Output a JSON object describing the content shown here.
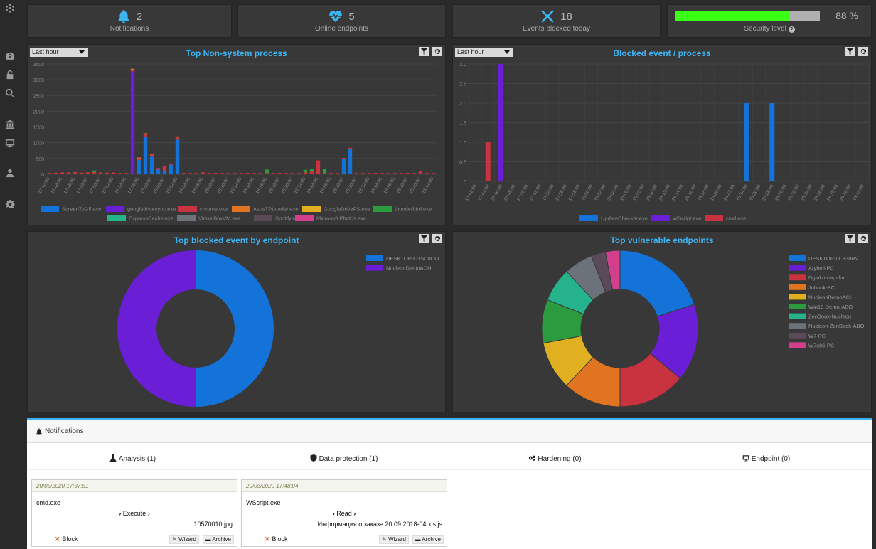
{
  "kpis": {
    "notifications": {
      "value": "2",
      "label": "Notifications"
    },
    "online": {
      "value": "5",
      "label": "Online endpoints"
    },
    "blocked": {
      "value": "18",
      "label": "Events blocked today"
    },
    "security": {
      "value": "88 %",
      "label": "Security level",
      "level_fraction": 0.88
    }
  },
  "colors": {
    "accent": "#3db4f2",
    "green": "#39ff14",
    "series": [
      "#1373d9",
      "#6a1ed6",
      "#c9323f",
      "#e07420",
      "#e0b020",
      "#2c9a3e",
      "#24b38a",
      "#6b727a",
      "#5a4a5a",
      "#d43f8d"
    ]
  },
  "panels": {
    "p1": {
      "title": "Top Non-system process",
      "range": "Last hour",
      "chart_data": {
        "type": "bar",
        "title": "Top Non-system process",
        "ylim": [
          0,
          3500
        ],
        "yticks": [
          0,
          500,
          1000,
          1500,
          2000,
          2500,
          3000,
          3500
        ],
        "x": [
          "17:42:00",
          "17:43:00",
          "17:44:00",
          "17:45:00",
          "17:46:00",
          "17:47:00",
          "17:48:00",
          "17:49:00",
          "17:50:00",
          "17:51:00",
          "17:52:00",
          "17:53:00",
          "17:54:00",
          "17:55:00",
          "17:56:00",
          "17:57:00",
          "17:58:00",
          "17:59:00",
          "18:00:00",
          "18:01:00",
          "18:02:00",
          "18:03:00",
          "18:04:00",
          "18:05:00",
          "18:06:00",
          "18:07:00",
          "18:08:00",
          "18:09:00",
          "18:10:00",
          "18:11:00",
          "18:12:00",
          "18:13:00",
          "18:14:00",
          "18:15:00",
          "18:16:00",
          "18:17:00",
          "18:18:00",
          "18:19:00",
          "18:20:00",
          "18:21:00",
          "18:22:00",
          "18:23:00",
          "18:24:00",
          "18:25:00",
          "18:26:00",
          "18:27:00",
          "18:28:00",
          "18:29:00",
          "18:30:00",
          "18:31:00",
          "18:32:00",
          "18:33:00",
          "18:34:00",
          "18:35:00",
          "18:36:00",
          "18:37:00",
          "18:38:00",
          "18:39:00",
          "18:40:00",
          "18:41:00",
          "18:42:00"
        ],
        "xtick_labels": [
          "17:42:00",
          "17:44:00",
          "17:46:00",
          "17:48:00",
          "17:50:00",
          "17:52:00",
          "17:54:00",
          "17:56:00",
          "17:58:00",
          "18:00:00",
          "18:02:00",
          "18:04:00",
          "18:06:00",
          "18:08:00",
          "18:10:00",
          "18:12:00",
          "18:14:00",
          "18:16:00",
          "18:18:00",
          "18:20:00",
          "18:22:00",
          "18:24:00",
          "18:26:00",
          "18:28:00",
          "18:30:00",
          "18:32:00",
          "18:34:00",
          "18:36:00",
          "18:38:00",
          "18:40:00",
          "18:42:00"
        ],
        "series": [
          {
            "name": "ScreenToGif.exe",
            "values": [
              0,
              0,
              0,
              0,
              0,
              0,
              0,
              0,
              0,
              0,
              0,
              0,
              0,
              0,
              450,
              1200,
              560,
              150,
              100,
              300,
              1100,
              0,
              0,
              0,
              0,
              0,
              0,
              0,
              0,
              0,
              0,
              0,
              0,
              0,
              0,
              0,
              0,
              0,
              0,
              0,
              0,
              0,
              0,
              0,
              0,
              0,
              480,
              800,
              0,
              0,
              0,
              0,
              0,
              0,
              0,
              0,
              0,
              0,
              0,
              0,
              0
            ]
          },
          {
            "name": "googledrivesync.exe",
            "values": [
              0,
              0,
              0,
              0,
              0,
              0,
              0,
              0,
              0,
              0,
              0,
              0,
              0,
              3260,
              0,
              0,
              0,
              0,
              0,
              0,
              0,
              0,
              0,
              0,
              0,
              0,
              0,
              0,
              0,
              0,
              0,
              0,
              0,
              0,
              0,
              0,
              0,
              0,
              0,
              0,
              0,
              0,
              0,
              0,
              0,
              0,
              0,
              0,
              0,
              0,
              0,
              0,
              0,
              0,
              0,
              0,
              0,
              0,
              0,
              0,
              0
            ]
          },
          {
            "name": "chrome.exe",
            "values": [
              40,
              50,
              60,
              60,
              70,
              50,
              60,
              70,
              60,
              50,
              60,
              40,
              40,
              50,
              50,
              60,
              60,
              50,
              150,
              40,
              70,
              40,
              40,
              40,
              60,
              40,
              40,
              40,
              40,
              40,
              40,
              40,
              40,
              40,
              40,
              40,
              40,
              40,
              40,
              40,
              60,
              100,
              440,
              40,
              40,
              40,
              40,
              40,
              40,
              40,
              40,
              40,
              40,
              40,
              40,
              40,
              40,
              40,
              100,
              40,
              40
            ]
          },
          {
            "name": "AsusTPLoader.exe",
            "values": [
              0,
              0,
              0,
              0,
              0,
              0,
              0,
              0,
              0,
              0,
              0,
              0,
              0,
              40,
              30,
              40,
              30,
              0,
              0,
              0,
              30,
              0,
              0,
              0,
              0,
              0,
              0,
              0,
              0,
              0,
              0,
              0,
              0,
              0,
              0,
              0,
              0,
              0,
              0,
              0,
              0,
              0,
              0,
              0,
              0,
              0,
              0,
              0,
              0,
              0,
              0,
              0,
              0,
              0,
              0,
              0,
              0,
              0,
              0,
              0,
              0
            ]
          },
          {
            "name": "GoogleDriveFS.exe",
            "values": [
              0,
              0,
              0,
              0,
              0,
              0,
              0,
              0,
              0,
              0,
              0,
              0,
              0,
              0,
              0,
              0,
              0,
              0,
              0,
              0,
              0,
              0,
              0,
              0,
              0,
              0,
              0,
              0,
              0,
              0,
              0,
              0,
              0,
              0,
              0,
              0,
              0,
              0,
              0,
              0,
              0,
              0,
              0,
              0,
              0,
              0,
              0,
              0,
              0,
              0,
              0,
              0,
              0,
              0,
              0,
              0,
              0,
              0,
              0,
              0,
              0
            ]
          },
          {
            "name": "thunderbird.exe",
            "values": [
              0,
              0,
              0,
              0,
              0,
              0,
              0,
              50,
              0,
              0,
              0,
              0,
              0,
              0,
              0,
              0,
              0,
              0,
              0,
              0,
              0,
              0,
              0,
              0,
              0,
              0,
              0,
              0,
              0,
              0,
              0,
              0,
              0,
              0,
              110,
              0,
              0,
              0,
              0,
              0,
              80,
              80,
              0,
              120,
              0,
              0,
              0,
              0,
              0,
              0,
              0,
              0,
              0,
              0,
              0,
              0,
              0,
              0,
              0,
              0,
              0
            ]
          },
          {
            "name": "ExpressCache.exe",
            "values": [
              0,
              0,
              0,
              0,
              0,
              0,
              0,
              0,
              0,
              0,
              0,
              0,
              0,
              0,
              0,
              0,
              0,
              0,
              0,
              0,
              0,
              0,
              0,
              0,
              0,
              0,
              0,
              0,
              0,
              0,
              0,
              0,
              0,
              0,
              0,
              0,
              0,
              0,
              0,
              0,
              0,
              0,
              0,
              0,
              0,
              0,
              0,
              0,
              0,
              0,
              0,
              0,
              0,
              0,
              0,
              0,
              0,
              0,
              0,
              0,
              0
            ]
          },
          {
            "name": "VirtualBoxVM.exe",
            "values": [
              0,
              0,
              0,
              0,
              0,
              0,
              0,
              0,
              0,
              0,
              0,
              0,
              0,
              0,
              0,
              0,
              0,
              0,
              0,
              0,
              0,
              0,
              0,
              0,
              0,
              0,
              0,
              0,
              0,
              0,
              0,
              0,
              0,
              0,
              0,
              0,
              0,
              0,
              0,
              0,
              0,
              0,
              0,
              0,
              0,
              0,
              0,
              0,
              0,
              0,
              0,
              0,
              0,
              0,
              0,
              0,
              0,
              0,
              0,
              0,
              0
            ]
          },
          {
            "name": "Spotify.exe",
            "values": [
              0,
              0,
              0,
              0,
              0,
              0,
              0,
              0,
              0,
              0,
              0,
              0,
              0,
              0,
              0,
              0,
              0,
              0,
              0,
              0,
              0,
              0,
              0,
              0,
              0,
              0,
              0,
              0,
              0,
              0,
              0,
              0,
              0,
              0,
              0,
              0,
              0,
              0,
              0,
              0,
              0,
              0,
              0,
              0,
              0,
              0,
              0,
              0,
              0,
              0,
              0,
              0,
              0,
              0,
              0,
              0,
              0,
              0,
              0,
              0,
              0
            ]
          },
          {
            "name": "Microsoft.Photos.exe",
            "values": [
              0,
              0,
              0,
              0,
              0,
              0,
              0,
              0,
              0,
              0,
              0,
              0,
              0,
              0,
              0,
              0,
              0,
              0,
              0,
              0,
              0,
              0,
              0,
              0,
              0,
              0,
              0,
              0,
              0,
              0,
              0,
              0,
              0,
              0,
              0,
              0,
              0,
              0,
              0,
              0,
              0,
              0,
              0,
              0,
              0,
              0,
              0,
              0,
              0,
              0,
              0,
              0,
              0,
              0,
              0,
              0,
              0,
              0,
              0,
              0,
              0
            ]
          }
        ]
      }
    },
    "p2": {
      "title": "Blocked event / process",
      "range": "Last hour",
      "chart_data": {
        "type": "bar",
        "title": "Blocked event / process",
        "ylim": [
          0,
          3.0
        ],
        "yticks": [
          "0",
          "0.5",
          "1.0",
          "1.5",
          "2.0",
          "2.5",
          "3.0"
        ],
        "x": [
          "17:42:00",
          "17:44:00",
          "17:46:00",
          "17:48:00",
          "17:50:00",
          "17:52:00",
          "17:54:00",
          "17:56:00",
          "17:58:00",
          "18:00:00",
          "18:02:00",
          "18:04:00",
          "18:06:00",
          "18:08:00",
          "18:10:00",
          "18:12:00",
          "18:14:00",
          "18:16:00",
          "18:18:00",
          "18:20:00",
          "18:22:00",
          "18:24:00",
          "18:26:00",
          "18:28:00",
          "18:30:00",
          "18:32:00",
          "18:34:00",
          "18:36:00",
          "18:38:00",
          "18:40:00",
          "18:42:00"
        ],
        "bars": [
          {
            "x": "17:44:00",
            "series": "cmd.exe",
            "value": 1
          },
          {
            "x": "17:46:00",
            "series": "WScript.exe",
            "value": 3
          },
          {
            "x": "18:24:00",
            "series": "UpdateChecker.exe",
            "value": 2
          },
          {
            "x": "18:28:00",
            "series": "UpdateChecker.exe",
            "value": 2
          }
        ],
        "series": [
          {
            "name": "UpdateChecker.exe",
            "color": "#1373d9"
          },
          {
            "name": "WScript.exe",
            "color": "#6a1ed6"
          },
          {
            "name": "cmd.exe",
            "color": "#c9323f"
          }
        ]
      }
    },
    "p3": {
      "title": "Top blocked event by endpoint",
      "chart_data": {
        "type": "pie",
        "title": "Top blocked event by endpoint",
        "labels": [
          "DESKTOP-O1SC8DO",
          "NucleonDemoACH"
        ],
        "values": [
          50,
          50
        ],
        "colors": [
          "#1373d9",
          "#6a1ed6"
        ]
      }
    },
    "p4": {
      "title": "Top vulnerable endpoints",
      "chart_data": {
        "type": "pie",
        "title": "Top vulnerable endpoints",
        "labels": [
          "DESKTOP-LC338RV",
          "Aryhell-PC",
          "Dginko-napalm",
          "Johnok-PC",
          "NucleonDemoACH",
          "Win10-Demo-ABO",
          "ZenBook-Nucleon",
          "Nucleon-ZenBook-ABO",
          "W7-PC",
          "W7x86-PC"
        ],
        "values": [
          20,
          16,
          14,
          12,
          10,
          9,
          7,
          6,
          3,
          3
        ],
        "colors": [
          "#1373d9",
          "#6a1ed6",
          "#c9323f",
          "#e07420",
          "#e0b020",
          "#2c9a3e",
          "#24b38a",
          "#6b727a",
          "#5a4a5a",
          "#d43f8d"
        ]
      }
    }
  },
  "notifications": {
    "title": "Notifications",
    "tabs": [
      "Analysis (1)",
      "Data protection (1)",
      "Hardening (0)",
      "Endpoint (0)"
    ],
    "cards": [
      {
        "ts": "20/05/2020 17:37:51",
        "process": "cmd.exe",
        "action": "Execute",
        "target": "10570010.jpg",
        "block": "Block",
        "wizard": "Wizard",
        "archive": "Archive"
      },
      {
        "ts": "20/05/2020 17:48:04",
        "process": "WScript.exe",
        "action": "Read",
        "target": "Информация о заказе 20.09.2018-04.xls.js",
        "block": "Block",
        "wizard": "Wizard",
        "archive": "Archive"
      }
    ]
  }
}
